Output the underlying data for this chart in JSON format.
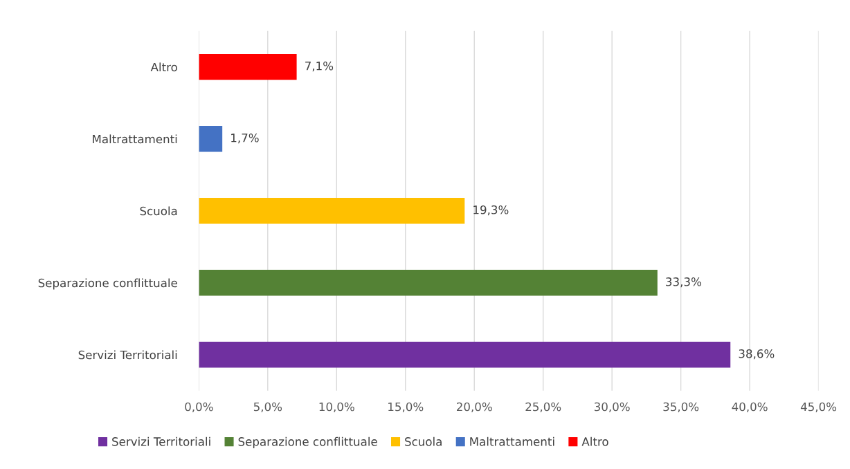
{
  "chart_data": {
    "type": "bar",
    "orientation": "horizontal",
    "categories": [
      "Altro",
      "Maltrattamenti",
      "Scuola",
      "Separazione conflittuale",
      "Servizi Territoriali"
    ],
    "series": [
      {
        "name": "Servizi Territoriali",
        "color": "#7030a0",
        "values": [
          null,
          null,
          null,
          null,
          38.6
        ],
        "value_labels": [
          null,
          null,
          null,
          null,
          "38,6%"
        ]
      },
      {
        "name": "Separazione conflittuale",
        "color": "#548235",
        "values": [
          null,
          null,
          null,
          33.3,
          null
        ],
        "value_labels": [
          null,
          null,
          null,
          "33,3%",
          null
        ]
      },
      {
        "name": "Scuola",
        "color": "#ffc000",
        "values": [
          null,
          null,
          19.3,
          null,
          null
        ],
        "value_labels": [
          null,
          null,
          "19,3%",
          null,
          null
        ]
      },
      {
        "name": "Maltrattamenti",
        "color": "#4472c4",
        "values": [
          null,
          1.7,
          null,
          null,
          null
        ],
        "value_labels": [
          null,
          "1,7%",
          null,
          null,
          null
        ]
      },
      {
        "name": "Altro",
        "color": "#ff0000",
        "values": [
          7.1,
          null,
          null,
          null,
          null
        ],
        "value_labels": [
          "7,1%",
          null,
          null,
          null,
          null
        ]
      }
    ],
    "xlim": [
      0,
      45
    ],
    "xticks": [
      {
        "value": 0,
        "label": "0,0%"
      },
      {
        "value": 5,
        "label": "5,0%"
      },
      {
        "value": 10,
        "label": "10,0%"
      },
      {
        "value": 15,
        "label": "15,0%"
      },
      {
        "value": 20,
        "label": "20,0%"
      },
      {
        "value": 25,
        "label": "25,0%"
      },
      {
        "value": 30,
        "label": "30,0%"
      },
      {
        "value": 35,
        "label": "35,0%"
      },
      {
        "value": 40,
        "label": "40,0%"
      },
      {
        "value": 45,
        "label": "45,0%"
      }
    ],
    "grid": "x",
    "legend": "bottom"
  }
}
